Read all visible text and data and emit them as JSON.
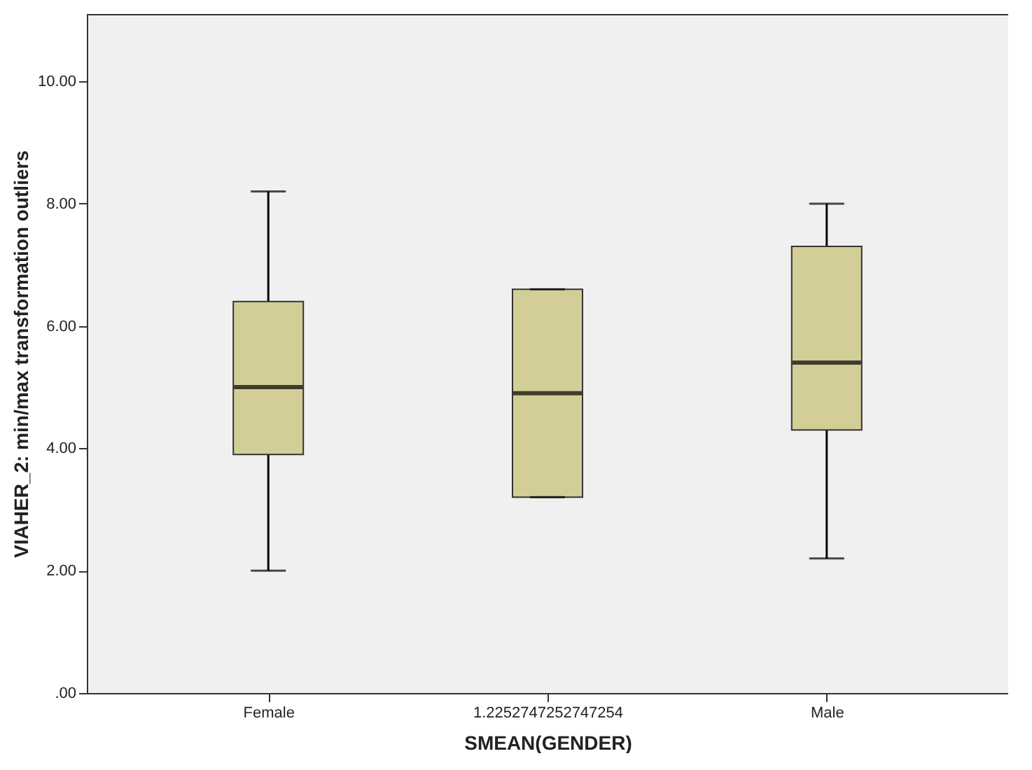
{
  "chart_data": {
    "type": "box",
    "xlabel": "SMEAN(GENDER)",
    "ylabel": "VIAHER_2: min/max transformation outliers",
    "categories": [
      "Female",
      "1.2252747252747254",
      "Male"
    ],
    "boxes": [
      {
        "low": 2.0,
        "q1": 3.9,
        "median": 5.0,
        "q3": 6.4,
        "high": 8.2
      },
      {
        "low": 3.2,
        "q1": 3.2,
        "median": 4.9,
        "q3": 6.6,
        "high": 6.6
      },
      {
        "low": 2.2,
        "q1": 4.3,
        "median": 5.4,
        "q3": 7.3,
        "high": 8.0
      }
    ],
    "color": "#d3ce97",
    "ylim": [
      0,
      11.1
    ],
    "yticks": [
      {
        "value": 0,
        "label": ".00"
      },
      {
        "value": 2,
        "label": "2.00"
      },
      {
        "value": 4,
        "label": "4.00"
      },
      {
        "value": 6,
        "label": "6.00"
      },
      {
        "value": 8,
        "label": "8.00"
      },
      {
        "value": 10,
        "label": "10.00"
      }
    ],
    "grid": false
  }
}
